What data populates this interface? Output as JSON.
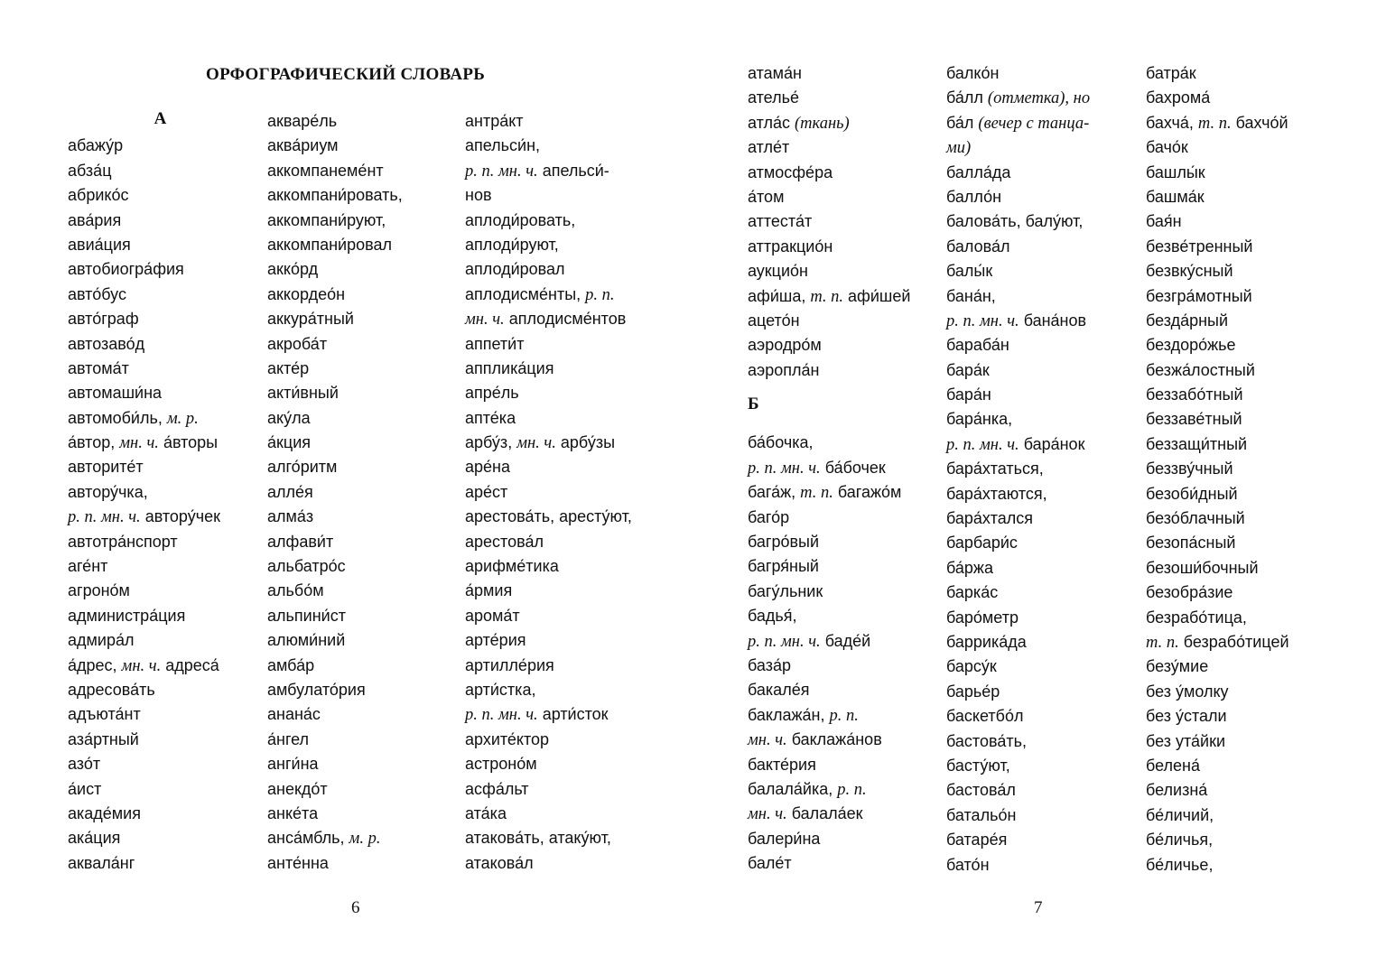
{
  "pages": [
    {
      "title": "ОРФОГРАФИЧЕСКИЙ СЛОВАРЬ",
      "page_number": "6",
      "columns": [
        {
          "heading": "А",
          "lines": [
            "абажу́р",
            "абза́ц",
            "абрико́с",
            "ава́рия",
            "авиа́ция",
            "автобиогра́фия",
            "авто́бус",
            "авто́граф",
            "автозаво́д",
            "автома́т",
            "автомаши́на",
            [
              {
                "t": "автомоби́ль, "
              },
              {
                "t": "м. р.",
                "i": true
              }
            ],
            [
              {
                "t": "а́втор, "
              },
              {
                "t": "мн. ч.",
                "i": true
              },
              {
                "t": " а́вторы"
              }
            ],
            "авторите́т",
            "автору́чка,",
            [
              {
                "t": "р. п. мн. ч.",
                "i": true
              },
              {
                "t": " автору́чек"
              }
            ],
            "автотра́нспорт",
            "аге́нт",
            "агроно́м",
            "администра́ция",
            "адмира́л",
            [
              {
                "t": "а́дрес, "
              },
              {
                "t": "мн. ч.",
                "i": true
              },
              {
                "t": " адреса́"
              }
            ],
            "адресова́ть",
            "адъюта́нт",
            "аза́ртный",
            "азо́т",
            "а́ист",
            "акаде́мия",
            "ака́ция",
            "аквала́нг"
          ]
        },
        {
          "lines": [
            "акваре́ль",
            "аква́риум",
            "аккомпанеме́нт",
            "аккомпани́ровать,",
            "аккомпани́руют,",
            "аккомпани́ровал",
            "акко́рд",
            "аккордео́н",
            "аккура́тный",
            "акроба́т",
            "акте́р",
            "акти́вный",
            "аку́ла",
            "а́кция",
            "алго́ритм",
            "алле́я",
            "алма́з",
            "алфави́т",
            "альбатро́с",
            "альбо́м",
            "альпини́ст",
            "алюми́ний",
            "амба́р",
            "амбулато́рия",
            "анана́с",
            "а́нгел",
            "анги́на",
            "анекдо́т",
            "анке́та",
            [
              {
                "t": "анса́мбль, "
              },
              {
                "t": "м. р.",
                "i": true
              }
            ],
            "анте́нна"
          ]
        },
        {
          "lines": [
            "антра́кт",
            "апельси́н,",
            [
              {
                "t": "р. п. мн. ч.",
                "i": true
              },
              {
                "t": " апельси́-"
              }
            ],
            "нов",
            "аплоди́ровать,",
            "аплоди́руют,",
            "аплоди́ровал",
            [
              {
                "t": "аплодисме́нты, "
              },
              {
                "t": "р. п.",
                "i": true
              }
            ],
            [
              {
                "t": "мн. ч.",
                "i": true
              },
              {
                "t": " аплодисме́нтов"
              }
            ],
            "аппети́т",
            "апплика́ция",
            "апре́ль",
            "апте́ка",
            [
              {
                "t": "арбу́з, "
              },
              {
                "t": "мн. ч.",
                "i": true
              },
              {
                "t": " арбу́зы"
              }
            ],
            "аре́на",
            "аре́ст",
            "арестова́ть, аресту́ют,",
            "арестова́л",
            "арифме́тика",
            "а́рмия",
            "арома́т",
            "арте́рия",
            "артилле́рия",
            "арти́стка,",
            [
              {
                "t": "р. п. мн. ч.",
                "i": true
              },
              {
                "t": " арти́сток"
              }
            ],
            "архите́ктор",
            "астроно́м",
            "асфа́льт",
            "ата́ка",
            "атакова́ть, атаку́ют,",
            "атакова́л"
          ]
        }
      ]
    },
    {
      "page_number": "7",
      "columns": [
        {
          "lines": [
            "атама́н",
            "ателье́",
            [
              {
                "t": "атла́с "
              },
              {
                "t": "(ткань)",
                "i": true
              }
            ],
            "атле́т",
            "атмосфе́ра",
            "а́том",
            "аттеста́т",
            "аттракцио́н",
            "аукцио́н",
            [
              {
                "t": "афи́ша, "
              },
              {
                "t": "т. п.",
                "i": true
              },
              {
                "t": " афи́шей"
              }
            ],
            "ацето́н",
            "аэродро́м",
            "аэропла́н"
          ],
          "heading": "Б",
          "lines_after": [
            "ба́бочка,",
            [
              {
                "t": "р. п. мн. ч.",
                "i": true
              },
              {
                "t": " ба́бочек"
              }
            ],
            [
              {
                "t": "бага́ж, "
              },
              {
                "t": "т. п.",
                "i": true
              },
              {
                "t": " багажо́м"
              }
            ],
            "баго́р",
            "багро́вый",
            "багря́ный",
            "багу́льник",
            "бадья́,",
            [
              {
                "t": "р. п. мн. ч.",
                "i": true
              },
              {
                "t": " баде́й"
              }
            ],
            "база́р",
            "бакале́я",
            [
              {
                "t": "баклажа́н, "
              },
              {
                "t": "р. п.",
                "i": true
              }
            ],
            [
              {
                "t": "мн. ч.",
                "i": true
              },
              {
                "t": " баклажа́нов"
              }
            ],
            "бакте́рия",
            [
              {
                "t": "балала́йка, "
              },
              {
                "t": "р. п.",
                "i": true
              }
            ],
            [
              {
                "t": "мн. ч.",
                "i": true
              },
              {
                "t": " балала́ек"
              }
            ],
            "балери́на",
            "бале́т"
          ]
        },
        {
          "lines": [
            "балко́н",
            [
              {
                "t": "ба́лл "
              },
              {
                "t": "(отметка), но",
                "i": true
              }
            ],
            [
              {
                "t": "ба́л "
              },
              {
                "t": "(вечер с танца-",
                "i": true
              }
            ],
            [
              {
                "t": "ми)",
                "i": true
              }
            ],
            "балла́да",
            "балло́н",
            "балова́ть, балу́ют,",
            "балова́л",
            "балы́к",
            "бана́н,",
            [
              {
                "t": "р. п. мн. ч.",
                "i": true
              },
              {
                "t": " бана́нов"
              }
            ],
            "бараба́н",
            "бара́к",
            "бара́н",
            "бара́нка,",
            [
              {
                "t": "р. п. мн. ч.",
                "i": true
              },
              {
                "t": " бара́нок"
              }
            ],
            "бара́хтаться,",
            "бара́хтаются,",
            "бара́хтался",
            "барбари́с",
            "ба́ржа",
            "барка́с",
            "баро́метр",
            "баррика́да",
            "барсу́к",
            "барье́р",
            "баскетбо́л",
            "бастова́ть,",
            "басту́ют,",
            "бастова́л",
            "батальо́н",
            "батаре́я",
            "бато́н"
          ]
        },
        {
          "lines": [
            "батра́к",
            "бахрома́",
            [
              {
                "t": "бахча́, "
              },
              {
                "t": "т. п.",
                "i": true
              },
              {
                "t": " бахчо́й"
              }
            ],
            "бачо́к",
            "башлы́к",
            "башма́к",
            "бая́н",
            "безве́тренный",
            "безвку́сный",
            "безгра́мотный",
            "безда́рный",
            "бездоро́жье",
            "безжа́лостный",
            "беззабо́тный",
            "беззаве́тный",
            "беззащи́тный",
            "беззву́чный",
            "безоби́дный",
            "безо́блачный",
            "безопа́сный",
            "безоши́бочный",
            "безобра́зие",
            "безрабо́тица,",
            [
              {
                "t": "т. п.",
                "i": true
              },
              {
                "t": " безрабо́тицей"
              }
            ],
            "безу́мие",
            "без у́молку",
            "без у́стали",
            "без ута́йки",
            "белена́",
            "белизна́",
            "бе́личий,",
            "бе́личья,",
            "бе́личье,"
          ]
        }
      ]
    }
  ]
}
